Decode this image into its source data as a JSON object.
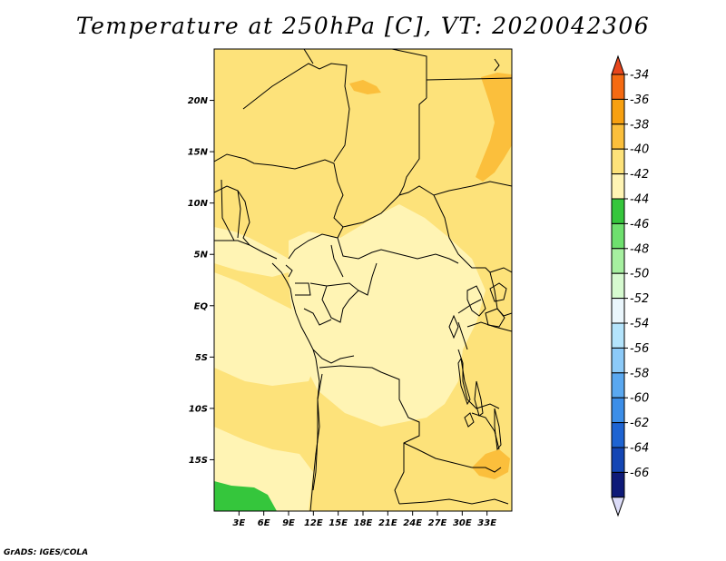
{
  "title": "Temperature at 250hPa [C], VT: 2020042306",
  "credit": "GrADS: IGES/COLA",
  "map": {
    "lon_range": [
      0,
      36
    ],
    "lat_range": [
      -20,
      25
    ],
    "lon_ticks": [
      {
        "value": 3,
        "label": "3E"
      },
      {
        "value": 6,
        "label": "6E"
      },
      {
        "value": 9,
        "label": "9E"
      },
      {
        "value": 12,
        "label": "12E"
      },
      {
        "value": 15,
        "label": "15E"
      },
      {
        "value": 18,
        "label": "18E"
      },
      {
        "value": 21,
        "label": "21E"
      },
      {
        "value": 24,
        "label": "24E"
      },
      {
        "value": 27,
        "label": "27E"
      },
      {
        "value": 30,
        "label": "30E"
      },
      {
        "value": 33,
        "label": "33E"
      }
    ],
    "lat_ticks": [
      {
        "value": 20,
        "label": "20N"
      },
      {
        "value": 15,
        "label": "15N"
      },
      {
        "value": 10,
        "label": "10N"
      },
      {
        "value": 5,
        "label": "5N"
      },
      {
        "value": 0,
        "label": "EQ"
      },
      {
        "value": -5,
        "label": "5S"
      },
      {
        "value": -10,
        "label": "10S"
      },
      {
        "value": -15,
        "label": "15S"
      }
    ]
  },
  "colorbar": {
    "levels": [
      "-34",
      "-36",
      "-38",
      "-40",
      "-42",
      "-44",
      "-46",
      "-48",
      "-50",
      "-52",
      "-54",
      "-56",
      "-58",
      "-60",
      "-62",
      "-64",
      "-66"
    ],
    "top_color": "#e8461c",
    "bottom_color": "#dcdcf8",
    "colors": [
      "#f56a12",
      "#f7a010",
      "#fbbf3c",
      "#fde27a",
      "#fff4b4",
      "#35c63c",
      "#6ee06e",
      "#a6f0a0",
      "#d6fad0",
      "#eaf6fc",
      "#b4e4fc",
      "#8ccaf8",
      "#5aa8f0",
      "#3c8ee8",
      "#1e64d2",
      "#1446b4",
      "#0e1a78"
    ]
  },
  "field": {
    "base_color": "#fde27a",
    "regions": [
      {
        "name": "light-center",
        "color": "#fff4b4"
      },
      {
        "name": "light-coast",
        "color": "#fff4b4"
      },
      {
        "name": "warm-northeast",
        "color": "#fbbf3c"
      },
      {
        "name": "warm-southeast",
        "color": "#fbbf3c"
      },
      {
        "name": "cold-southwest",
        "color": "#35c63c"
      }
    ]
  }
}
